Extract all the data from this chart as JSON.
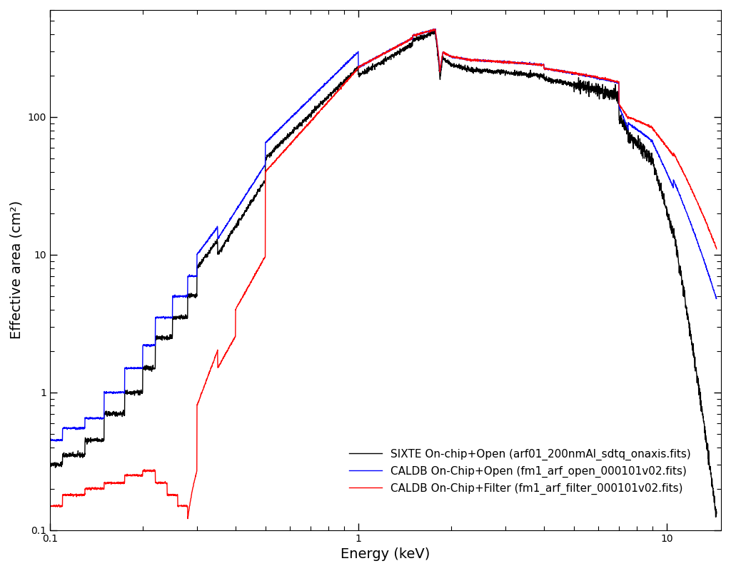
{
  "title": "",
  "xlabel": "Energy (keV)",
  "ylabel": "Effective area (cm²)",
  "xlim": [
    0.1,
    15.0
  ],
  "ylim": [
    0.1,
    600
  ],
  "legend_labels": [
    "SIXTE On-chip+Open (arf01_200nmAl_sdtq_onaxis.fits)",
    "CALDB On-Chip+Open (fm1_arf_open_000101v02.fits)",
    "CALDB On-Chip+Filter (fm1_arf_filter_000101v02.fits)"
  ],
  "legend_colors": [
    "black",
    "blue",
    "red"
  ],
  "line_width": 1.0,
  "background_color": "#ffffff",
  "grid": false
}
